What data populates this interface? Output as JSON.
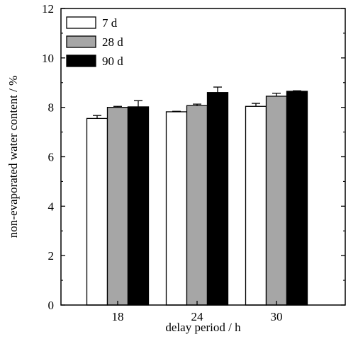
{
  "chart_data": {
    "type": "bar",
    "xlabel": "delay period / h",
    "ylabel": "non-evaporated water content / %",
    "categories": [
      "18",
      "24",
      "30"
    ],
    "ylim": [
      0,
      12
    ],
    "yticks": [
      "0",
      "2",
      "4",
      "6",
      "8",
      "10",
      "12"
    ],
    "grid": false,
    "legend_position": "top-left",
    "series": [
      {
        "name": "7 d",
        "color": "#ffffff",
        "values": [
          7.55,
          7.82,
          8.04
        ],
        "errors": [
          0.12,
          0.02,
          0.12
        ]
      },
      {
        "name": "28 d",
        "color": "#a6a6a6",
        "values": [
          8.0,
          8.07,
          8.45
        ],
        "errors": [
          0.04,
          0.06,
          0.12
        ]
      },
      {
        "name": "90 d",
        "color": "#000000",
        "values": [
          8.02,
          8.6,
          8.65
        ],
        "errors": [
          0.25,
          0.22,
          0.02
        ]
      }
    ]
  }
}
